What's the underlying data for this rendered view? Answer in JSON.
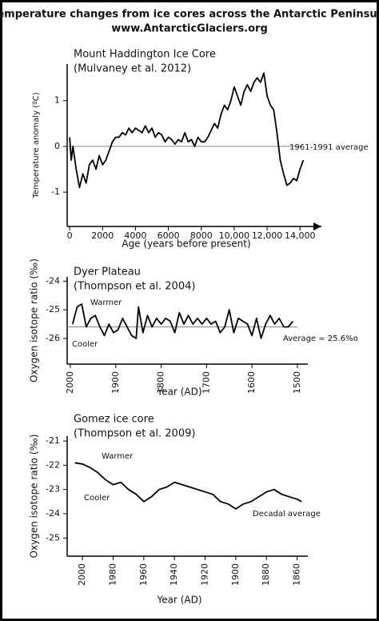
{
  "header": {
    "title": "Temperature changes from ice cores across the Antarctic Peninsula",
    "subtitle": "www.AntarcticGlaciers.org"
  },
  "chart_data": [
    {
      "type": "line",
      "title": "Mount Haddington Ice Core",
      "subtitle": "(Mulvaney et al. 2012)",
      "x_label": "Age (years before present)",
      "y_label": "Temperature anomaly (ºC)",
      "color": "#000000",
      "x": [
        0,
        100,
        200,
        400,
        600,
        800,
        1000,
        1200,
        1400,
        1600,
        1800,
        2000,
        2200,
        2400,
        2600,
        2800,
        3000,
        3200,
        3400,
        3600,
        3800,
        4000,
        4200,
        4400,
        4600,
        4800,
        5000,
        5200,
        5400,
        5600,
        5800,
        6000,
        6200,
        6400,
        6600,
        6800,
        7000,
        7200,
        7400,
        7600,
        7800,
        8000,
        8200,
        8400,
        8600,
        8800,
        9000,
        9200,
        9400,
        9600,
        9800,
        10000,
        10200,
        10400,
        10600,
        10800,
        11000,
        11200,
        11400,
        11600,
        11800,
        12000,
        12200,
        12400,
        12600,
        12800,
        13000,
        13200,
        13400,
        13600,
        13800,
        14000,
        14200
      ],
      "values": [
        0.2,
        -0.3,
        0.0,
        -0.5,
        -0.9,
        -0.6,
        -0.8,
        -0.4,
        -0.3,
        -0.5,
        -0.2,
        -0.4,
        -0.3,
        -0.1,
        0.1,
        0.2,
        0.2,
        0.3,
        0.25,
        0.4,
        0.3,
        0.4,
        0.35,
        0.3,
        0.45,
        0.3,
        0.4,
        0.2,
        0.3,
        0.25,
        0.1,
        0.2,
        0.15,
        0.05,
        0.15,
        0.1,
        0.3,
        0.1,
        0.15,
        0.0,
        0.2,
        0.1,
        0.1,
        0.2,
        0.35,
        0.5,
        0.4,
        0.7,
        0.9,
        0.8,
        1.0,
        1.3,
        1.1,
        0.9,
        1.2,
        1.35,
        1.2,
        1.4,
        1.5,
        1.4,
        1.6,
        1.1,
        0.9,
        0.8,
        0.3,
        -0.3,
        -0.6,
        -0.85,
        -0.8,
        -0.7,
        -0.75,
        -0.5,
        -0.3
      ],
      "xlim": [
        -150,
        15300
      ],
      "xticks": [
        0,
        2000,
        4000,
        6000,
        8000,
        {
          "value": 10000,
          "label": "10,000"
        },
        {
          "value": 12000,
          "label": "12,000"
        },
        {
          "value": 14000,
          "label": "14,000"
        }
      ],
      "ylim": [
        -1.75,
        1.8
      ],
      "yticks": [
        -1,
        0,
        1
      ],
      "reference": {
        "value": 0,
        "label": "1961-1991 average"
      },
      "annotations": []
    },
    {
      "type": "line",
      "title": "Dyer Plateau",
      "subtitle": "(Thompson et al. 2004)",
      "x_label": "Year (AD)",
      "y_label": "Oxygen isotope ratio (‰)",
      "color": "#000000",
      "x": [
        1995,
        1985,
        1975,
        1965,
        1955,
        1945,
        1935,
        1925,
        1915,
        1905,
        1895,
        1885,
        1875,
        1865,
        1855,
        1850,
        1840,
        1830,
        1820,
        1810,
        1800,
        1790,
        1780,
        1770,
        1760,
        1750,
        1740,
        1730,
        1720,
        1710,
        1700,
        1690,
        1680,
        1670,
        1660,
        1650,
        1640,
        1630,
        1620,
        1610,
        1600,
        1590,
        1580,
        1570,
        1560,
        1550,
        1540,
        1530,
        1520,
        1510
      ],
      "values": [
        -25.5,
        -24.9,
        -24.8,
        -25.6,
        -25.3,
        -25.2,
        -25.6,
        -25.9,
        -25.5,
        -25.8,
        -25.7,
        -25.3,
        -25.6,
        -25.9,
        -26.0,
        -24.9,
        -25.8,
        -25.2,
        -25.6,
        -25.3,
        -25.5,
        -25.3,
        -25.4,
        -25.8,
        -25.1,
        -25.5,
        -25.2,
        -25.5,
        -25.3,
        -25.5,
        -25.3,
        -25.5,
        -25.4,
        -25.8,
        -25.6,
        -25.0,
        -25.8,
        -25.3,
        -25.4,
        -25.5,
        -25.9,
        -25.3,
        -26.0,
        -25.5,
        -25.2,
        -25.5,
        -25.3,
        -25.6,
        -25.6,
        -25.4
      ],
      "xlim": [
        2007,
        1477
      ],
      "xticks": [
        2000,
        1900,
        1800,
        1700,
        1600,
        1500
      ],
      "ylim": [
        -26.9,
        -23.85
      ],
      "yticks": [
        -24,
        -25,
        -26
      ],
      "reference": {
        "value": -25.6,
        "label": "Average = 25.6%o"
      },
      "annotations": [
        "Warmer",
        "Cooler"
      ]
    },
    {
      "type": "line",
      "title": "Gomez ice core",
      "subtitle": "(Thompson et al. 2009)",
      "x_label": "Year (AD)",
      "y_label": "Oxygen isotope ratio (‰)",
      "color": "#000000",
      "x": [
        2005,
        2000,
        1995,
        1990,
        1985,
        1980,
        1975,
        1970,
        1965,
        1960,
        1955,
        1950,
        1945,
        1940,
        1935,
        1930,
        1925,
        1920,
        1915,
        1910,
        1905,
        1900,
        1895,
        1890,
        1885,
        1880,
        1875,
        1870,
        1865,
        1860,
        1857
      ],
      "values": [
        -21.9,
        -21.95,
        -22.1,
        -22.3,
        -22.6,
        -22.8,
        -22.7,
        -23.0,
        -23.2,
        -23.5,
        -23.3,
        -23.0,
        -22.9,
        -22.7,
        -22.8,
        -22.9,
        -23.0,
        -23.1,
        -23.2,
        -23.5,
        -23.6,
        -23.8,
        -23.6,
        -23.5,
        -23.3,
        -23.1,
        -23.0,
        -23.2,
        -23.3,
        -23.4,
        -23.5
      ],
      "xlim": [
        2010,
        1853
      ],
      "xticks": [
        2000,
        1980,
        1960,
        1940,
        1920,
        1900,
        1880,
        1860
      ],
      "ylim": [
        -25.75,
        -20.8
      ],
      "yticks": [
        -21,
        -22,
        -23,
        -24,
        -25
      ],
      "annotations": [
        "Warmer",
        "Cooler",
        "Decadal average"
      ]
    }
  ]
}
